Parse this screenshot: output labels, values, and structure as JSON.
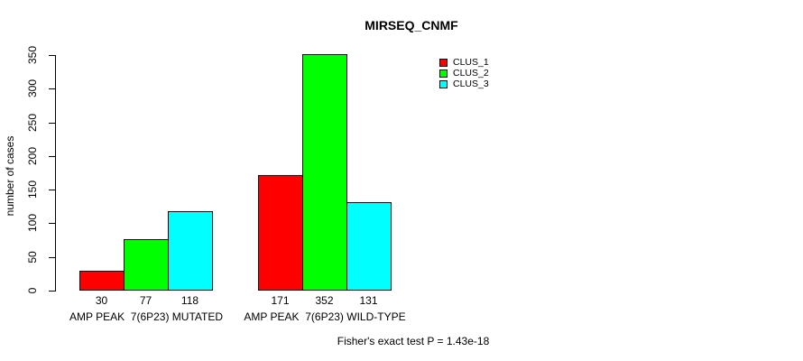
{
  "chart_data": {
    "type": "bar",
    "title": "MIRSEQ_CNMF",
    "ylabel": "number of cases",
    "xlabel": "",
    "ylim": [
      0,
      350
    ],
    "yticks": [
      0,
      50,
      100,
      150,
      200,
      250,
      300,
      350
    ],
    "categories": [
      "AMP PEAK  7(6P23) MUTATED",
      "AMP PEAK  7(6P23) WILD-TYPE"
    ],
    "series": [
      {
        "name": "CLUS_1",
        "color": "#ff0000",
        "values": [
          30,
          171
        ]
      },
      {
        "name": "CLUS_2",
        "color": "#00ff00",
        "values": [
          77,
          352
        ]
      },
      {
        "name": "CLUS_3",
        "color": "#00ffff",
        "values": [
          118,
          131
        ]
      }
    ],
    "show_bar_values": true,
    "grid": false,
    "legend_position": "top-right",
    "annotation": "Fisher's exact test P = 1.43e-18"
  }
}
